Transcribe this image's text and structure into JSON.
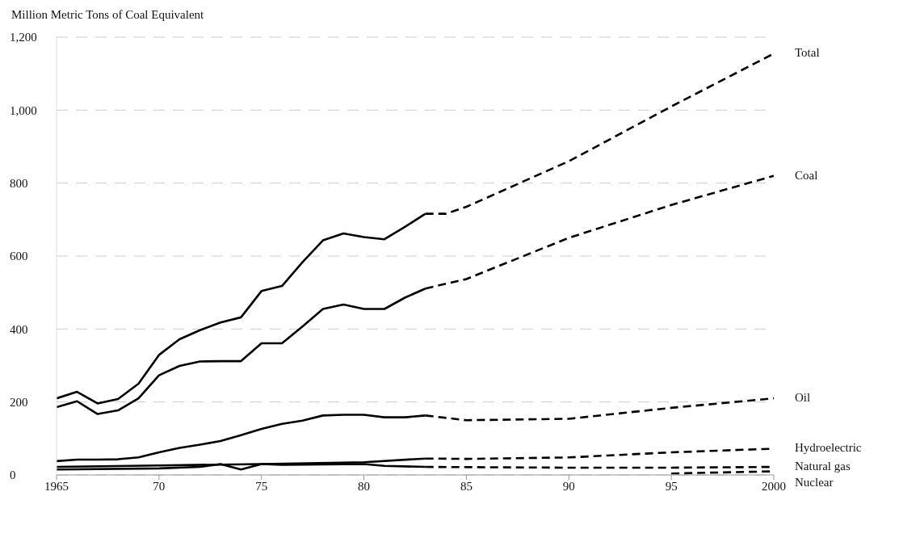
{
  "chart_data": {
    "type": "line",
    "ylabel": "Million Metric Tons of Coal Equivalent",
    "xlim": [
      1965,
      2000
    ],
    "ylim": [
      0,
      1200
    ],
    "xticks": [
      {
        "value": 1965,
        "label": "1965"
      },
      {
        "value": 1970,
        "label": "70"
      },
      {
        "value": 1975,
        "label": "75"
      },
      {
        "value": 1980,
        "label": "80"
      },
      {
        "value": 1985,
        "label": "85"
      },
      {
        "value": 1990,
        "label": "90"
      },
      {
        "value": 1995,
        "label": "95"
      },
      {
        "value": 2000,
        "label": "2000"
      }
    ],
    "yticks": [
      0,
      200,
      400,
      600,
      800,
      {
        "value": 1000,
        "label": "1,000"
      },
      {
        "value": 1200,
        "label": "1,200"
      }
    ],
    "grid": "y",
    "legend": false,
    "marker": "none",
    "series": [
      {
        "color": "#000000",
        "line_style": "solid",
        "x": [
          1965,
          1966,
          1967,
          1968,
          1969,
          1970,
          1971,
          1972,
          1973,
          1974,
          1975,
          1976,
          1977,
          1978,
          1979,
          1980,
          1981,
          1982,
          1983
        ],
        "values": [
          210,
          228,
          196,
          208,
          250,
          329,
          372,
          397,
          418,
          432,
          504,
          518,
          583,
          643,
          662,
          652,
          646,
          680,
          716
        ]
      },
      {
        "name": "Total",
        "color": "#000000",
        "line_style": "dashed",
        "x": [
          1983,
          1984,
          1985,
          1990,
          1995,
          2000
        ],
        "values": [
          716,
          716,
          735,
          860,
          1010,
          1155
        ]
      },
      {
        "color": "#000000",
        "line_style": "solid",
        "x": [
          1965,
          1966,
          1967,
          1968,
          1969,
          1970,
          1971,
          1972,
          1973,
          1974,
          1975,
          1976,
          1977,
          1978,
          1979,
          1980,
          1981,
          1982,
          1983
        ],
        "values": [
          186,
          202,
          167,
          177,
          210,
          273,
          299,
          311,
          312,
          312,
          361,
          361,
          407,
          455,
          467,
          455,
          455,
          486,
          511
        ]
      },
      {
        "name": "Coal",
        "color": "#000000",
        "line_style": "dashed",
        "x": [
          1983,
          1985,
          1990,
          1995,
          2000
        ],
        "values": [
          511,
          537,
          650,
          740,
          820
        ]
      },
      {
        "color": "#000000",
        "line_style": "solid",
        "x": [
          1965,
          1966,
          1967,
          1968,
          1969,
          1970,
          1971,
          1972,
          1973,
          1974,
          1975,
          1976,
          1977,
          1978,
          1979,
          1980,
          1981,
          1982,
          1983
        ],
        "values": [
          38,
          42,
          42,
          43,
          48,
          62,
          74,
          83,
          93,
          109,
          126,
          140,
          149,
          163,
          165,
          165,
          158,
          158,
          163
        ]
      },
      {
        "name": "Oil",
        "color": "#000000",
        "line_style": "dashed",
        "x": [
          1983,
          1985,
          1990,
          1995,
          2000
        ],
        "values": [
          163,
          150,
          154,
          184,
          210
        ]
      },
      {
        "color": "#000000",
        "line_style": "solid",
        "x": [
          1965,
          1970,
          1975,
          1980,
          1983
        ],
        "values": [
          22,
          26,
          30,
          35,
          45
        ]
      },
      {
        "name": "Hydroelectric",
        "color": "#000000",
        "line_style": "dashed",
        "x": [
          1983,
          1985,
          1990,
          1995,
          2000
        ],
        "values": [
          45,
          44,
          48,
          62,
          72
        ]
      },
      {
        "color": "#000000",
        "line_style": "solid",
        "x": [
          1965,
          1970,
          1972,
          1973,
          1974,
          1975,
          1976,
          1980,
          1981,
          1983
        ],
        "values": [
          15,
          18,
          22,
          30,
          15,
          30,
          28,
          30,
          25,
          22
        ]
      },
      {
        "name": "Natural gas",
        "color": "#000000",
        "line_style": "dashed",
        "x": [
          1983,
          1990,
          1995,
          2000
        ],
        "values": [
          22,
          20,
          20,
          22
        ]
      },
      {
        "name": "Nuclear",
        "color": "#000000",
        "line_style": "dashed",
        "x": [
          1995,
          2000
        ],
        "values": [
          4,
          10
        ]
      }
    ]
  }
}
